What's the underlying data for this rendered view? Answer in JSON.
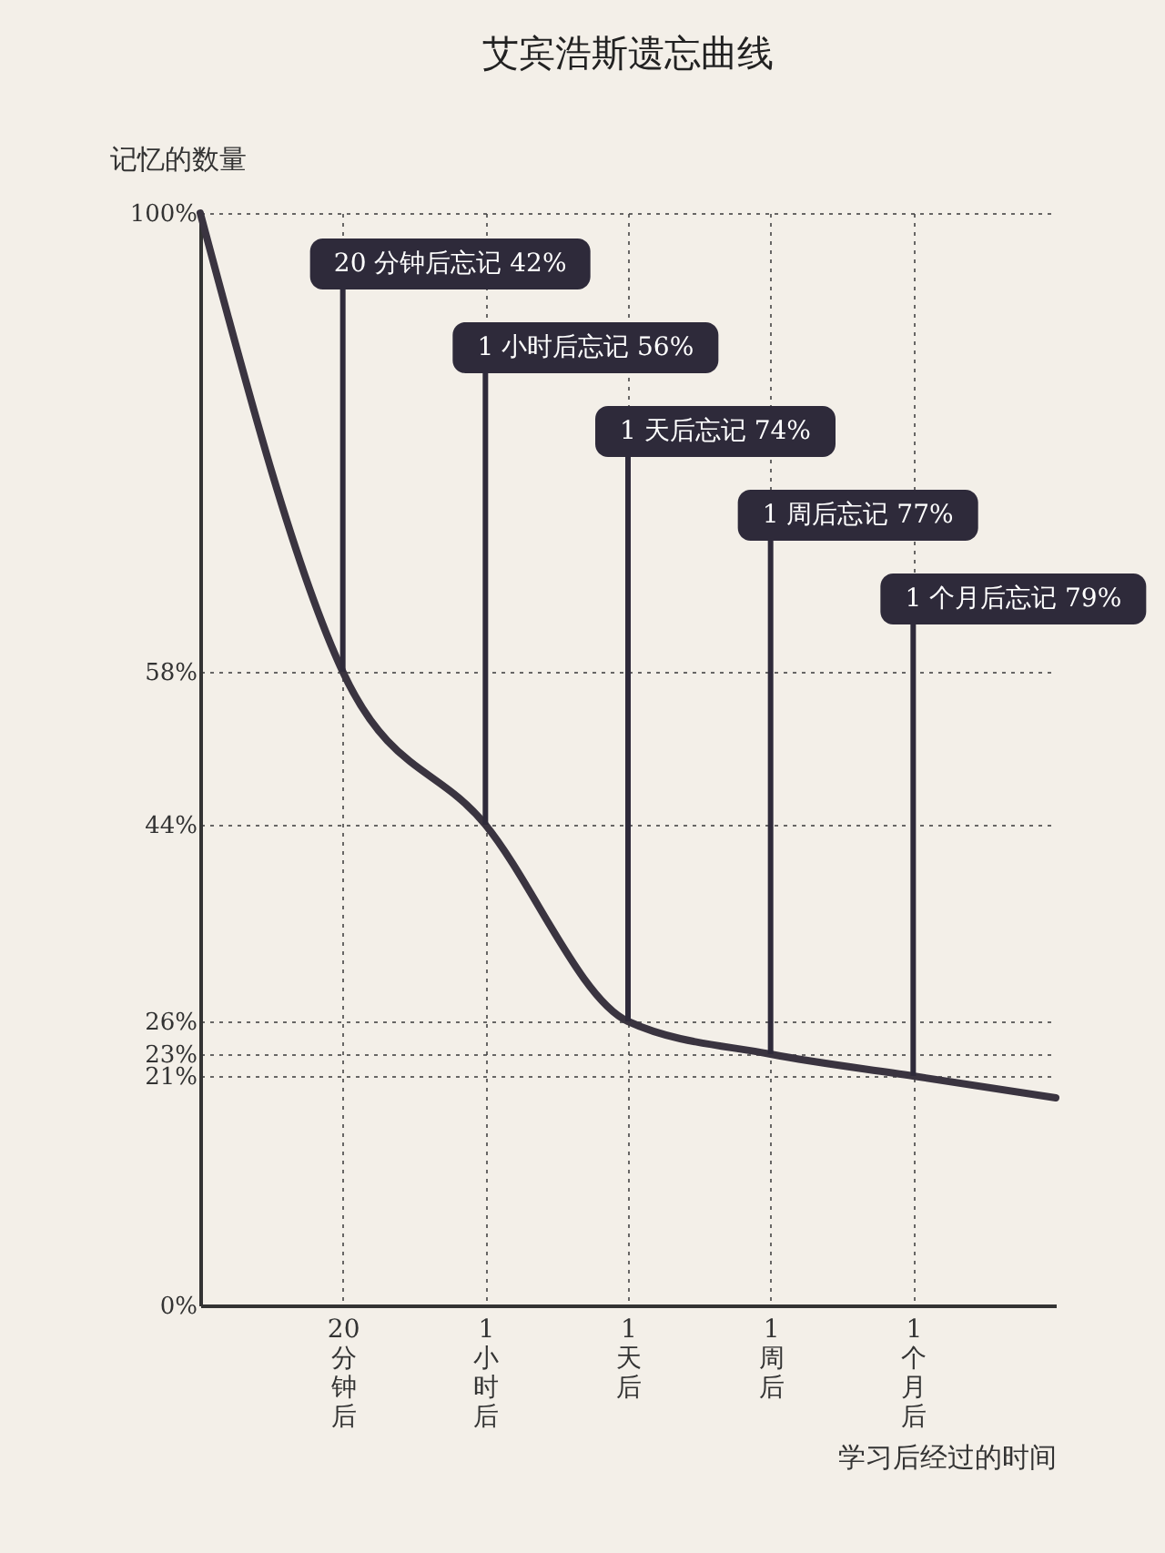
{
  "chart_data": {
    "type": "line",
    "title": "艾宾浩斯遗忘曲线",
    "xlabel": "学习后经过的时间",
    "ylabel": "记忆的数量",
    "categories": [
      null,
      "20分钟后",
      "1小时后",
      "1天后",
      "1周后",
      "1个月后",
      null
    ],
    "series": [
      {
        "color": "#3a3440",
        "values": [
          100,
          58,
          44,
          26,
          23,
          21,
          19
        ]
      }
    ],
    "ylim": [
      0,
      100
    ],
    "yticks": [
      {
        "value": 0,
        "label": "0%"
      },
      {
        "value": 21,
        "label": "21%"
      },
      {
        "value": 23,
        "label": "23%"
      },
      {
        "value": 26,
        "label": "26%"
      },
      {
        "value": 44,
        "label": "44%"
      },
      {
        "value": 58,
        "label": "58%"
      },
      {
        "value": 100,
        "label": "100%"
      }
    ],
    "grid": true,
    "line_style": "solid",
    "annotations": [
      {
        "text": "20 分钟后忘记 42%",
        "x": "20分钟后",
        "y": 58
      },
      {
        "text": "1 小时后忘记 56%",
        "x": "1小时后",
        "y": 44
      },
      {
        "text": "1 天后忘记 74%",
        "x": "1天后",
        "y": 26
      },
      {
        "text": "1 周后忘记 77%",
        "x": "1周后",
        "y": 23
      },
      {
        "text": "1 个月后忘记 79%",
        "x": "1个月后",
        "y": 21
      }
    ]
  }
}
